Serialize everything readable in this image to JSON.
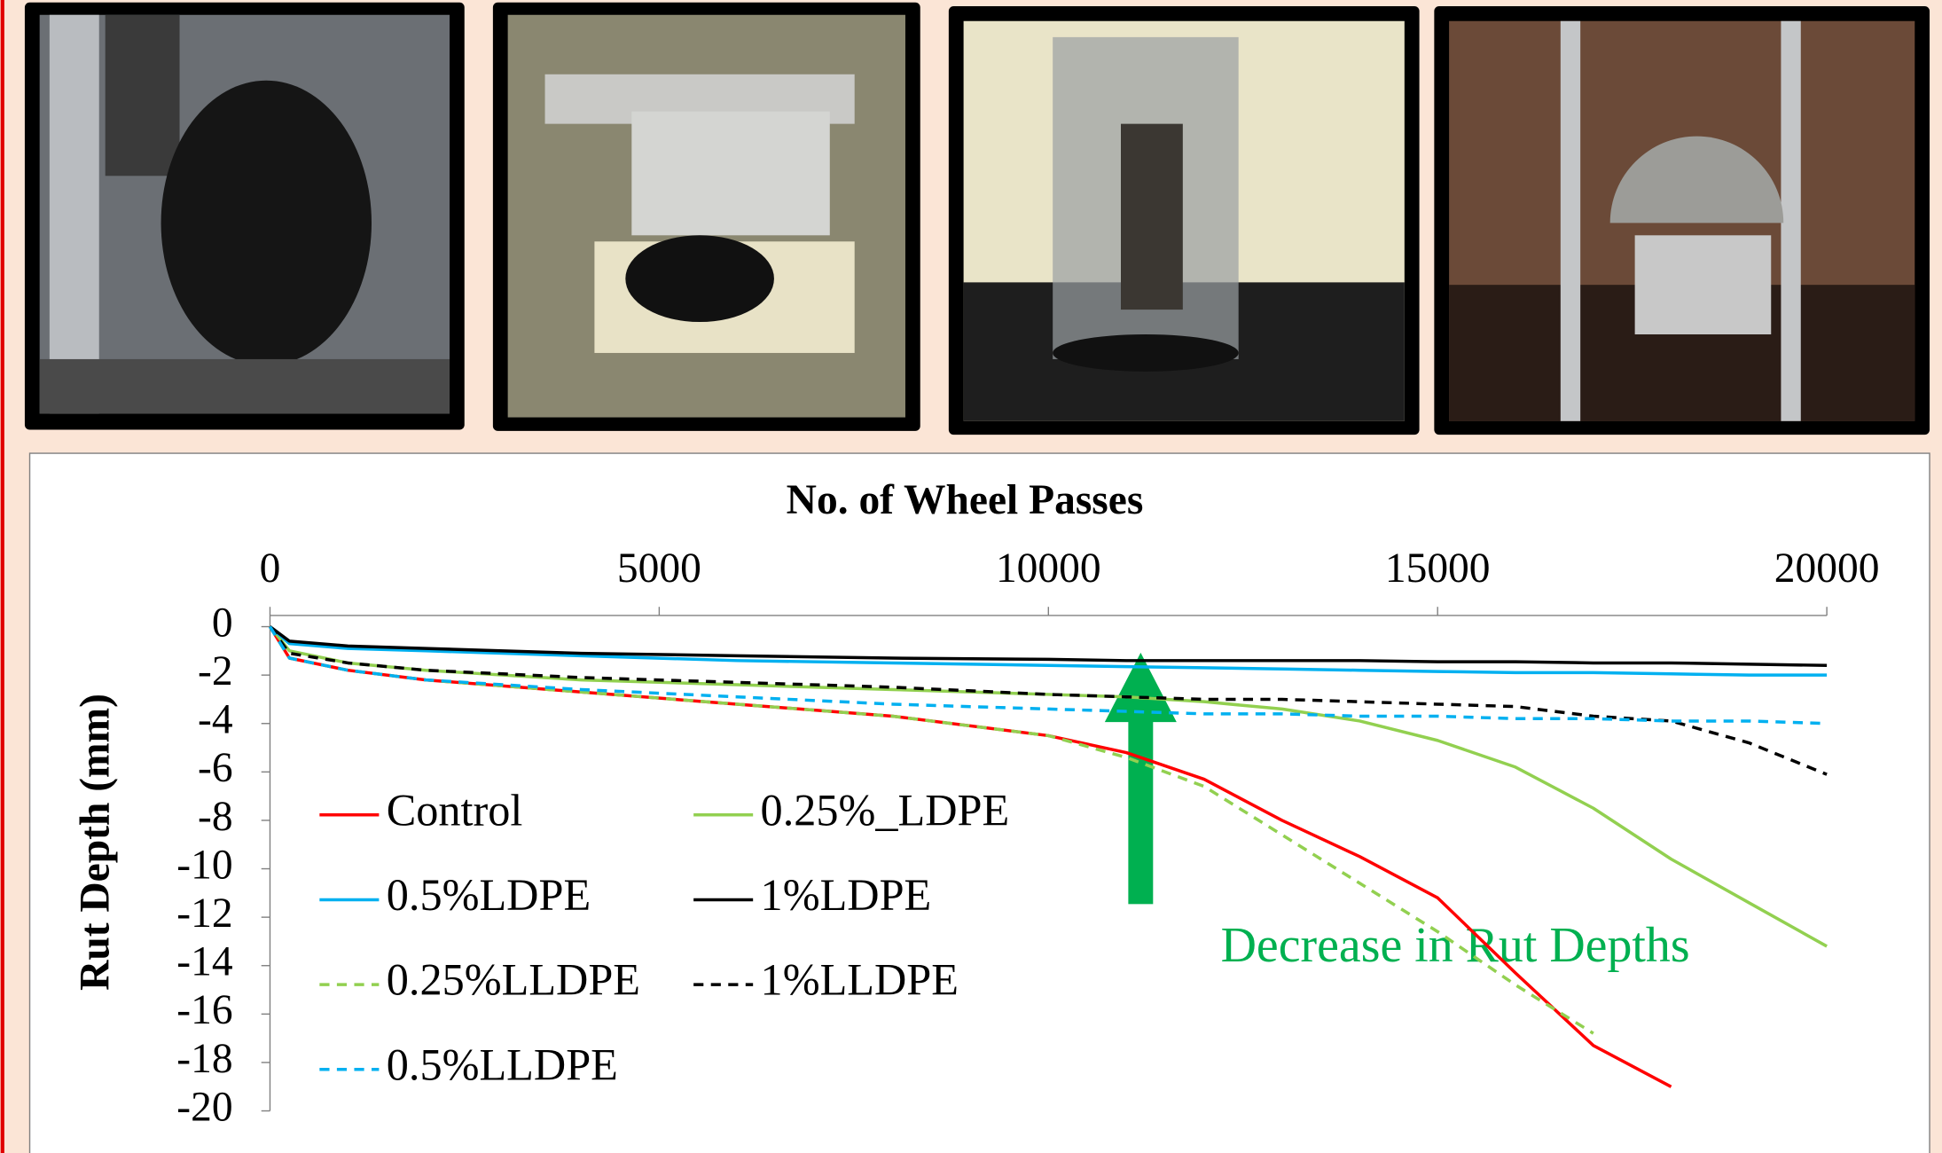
{
  "chart_data": {
    "type": "line",
    "x_label": "No. of Wheel Passes",
    "y_label": "Rut Depth (mm)",
    "annotation": "Decrease in Rut Depths",
    "annotation_color": "#00b050",
    "x": [
      0,
      250,
      1000,
      2000,
      4000,
      6000,
      8000,
      10000,
      11000,
      12000,
      13000,
      14000,
      15000,
      16000,
      17000,
      18000,
      19000,
      20000
    ],
    "series": [
      {
        "name": "Control",
        "color": "#ff0000",
        "dashed": false,
        "values": [
          0,
          -1.3,
          -1.8,
          -2.2,
          -2.7,
          -3.2,
          -3.7,
          -4.5,
          -5.2,
          -6.3,
          -8.0,
          -9.5,
          -11.2,
          -14.3,
          -17.3,
          -19.0,
          null,
          null
        ]
      },
      {
        "name": "0.25%_LDPE",
        "color": "#92d050",
        "dashed": false,
        "values": [
          0,
          -1.0,
          -1.5,
          -1.8,
          -2.2,
          -2.4,
          -2.6,
          -2.8,
          -2.9,
          -3.1,
          -3.4,
          -3.9,
          -4.7,
          -5.8,
          -7.5,
          -9.6,
          -11.4,
          -13.2
        ]
      },
      {
        "name": "0.5%LDPE",
        "color": "#00b0f0",
        "dashed": false,
        "values": [
          0,
          -0.7,
          -0.9,
          -1.0,
          -1.2,
          -1.4,
          -1.5,
          -1.6,
          -1.65,
          -1.7,
          -1.75,
          -1.8,
          -1.85,
          -1.9,
          -1.9,
          -1.95,
          -2.0,
          -2.0
        ]
      },
      {
        "name": "1%LDPE",
        "color": "#000000",
        "dashed": false,
        "values": [
          0,
          -0.6,
          -0.8,
          -0.9,
          -1.1,
          -1.2,
          -1.3,
          -1.35,
          -1.4,
          -1.4,
          -1.4,
          -1.4,
          -1.45,
          -1.45,
          -1.5,
          -1.5,
          -1.55,
          -1.6
        ]
      },
      {
        "name": "0.25%LLDPE",
        "color": "#92d050",
        "dashed": true,
        "values": [
          0,
          -1.3,
          -1.8,
          -2.2,
          -2.7,
          -3.2,
          -3.7,
          -4.5,
          -5.4,
          -6.6,
          -8.6,
          -10.6,
          -12.6,
          -14.8,
          -16.8,
          null,
          null,
          null
        ]
      },
      {
        "name": "1%LLDPE",
        "color": "#000000",
        "dashed": true,
        "values": [
          0,
          -1.1,
          -1.5,
          -1.8,
          -2.1,
          -2.3,
          -2.5,
          -2.8,
          -2.9,
          -3.0,
          -3.0,
          -3.1,
          -3.2,
          -3.3,
          -3.7,
          -3.9,
          -4.8,
          -6.1
        ]
      },
      {
        "name": "0.5%LLDPE",
        "color": "#00b0f0",
        "dashed": true,
        "values": [
          0,
          -1.3,
          -1.8,
          -2.2,
          -2.6,
          -2.9,
          -3.2,
          -3.4,
          -3.5,
          -3.6,
          -3.6,
          -3.7,
          -3.7,
          -3.8,
          -3.8,
          -3.9,
          -3.9,
          -4.0
        ]
      }
    ],
    "xlim": [
      0,
      20000
    ],
    "xticks": [
      0,
      5000,
      10000,
      15000,
      20000
    ],
    "ylim": [
      -20,
      0
    ],
    "yticks": [
      0,
      -2,
      -4,
      -6,
      -8,
      -10,
      -12,
      -14,
      -16,
      -18,
      -20
    ]
  }
}
